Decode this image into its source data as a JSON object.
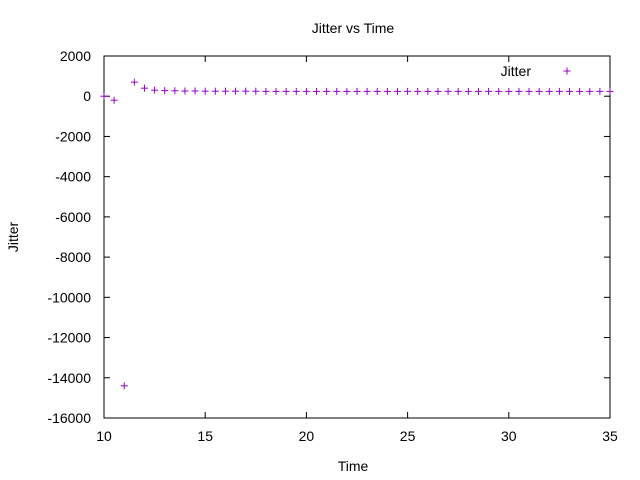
{
  "chart_data": {
    "type": "scatter",
    "title": "Jitter vs Time",
    "xlabel": "Time",
    "ylabel": "Jitter",
    "xlim": [
      10,
      35
    ],
    "ylim": [
      -16000,
      2000
    ],
    "xticks": [
      "10",
      "15",
      "20",
      "25",
      "30",
      "35"
    ],
    "yticks": [
      "2000",
      "0",
      "-2000",
      "-4000",
      "-6000",
      "-8000",
      "-10000",
      "-12000",
      "-14000",
      "-16000"
    ],
    "legend": {
      "position": "top-right"
    },
    "grid": false,
    "series": [
      {
        "name": "Jitter",
        "color": "#9400d3",
        "marker": "plus",
        "x": [
          10,
          10.5,
          11,
          11.5,
          12,
          12.5,
          13,
          13.5,
          14,
          14.5,
          15,
          15.5,
          16,
          16.5,
          17,
          17.5,
          18,
          18.5,
          19,
          19.5,
          20,
          20.5,
          21,
          21.5,
          22,
          22.5,
          23,
          23.5,
          24,
          24.5,
          25,
          25.5,
          26,
          26.5,
          27,
          27.5,
          28,
          28.5,
          29,
          29.5,
          30,
          30.5,
          31,
          31.5,
          32,
          32.5,
          33,
          33.5,
          34,
          34.5,
          35
        ],
        "y": [
          0,
          -200,
          -14400,
          700,
          400,
          300,
          280,
          270,
          260,
          260,
          250,
          250,
          250,
          250,
          250,
          250,
          240,
          240,
          240,
          240,
          240,
          240,
          240,
          240,
          240,
          240,
          240,
          240,
          240,
          240,
          240,
          240,
          240,
          240,
          240,
          240,
          240,
          240,
          240,
          240,
          240,
          240,
          240,
          240,
          240,
          240,
          240,
          240,
          240,
          240,
          240
        ]
      }
    ]
  }
}
